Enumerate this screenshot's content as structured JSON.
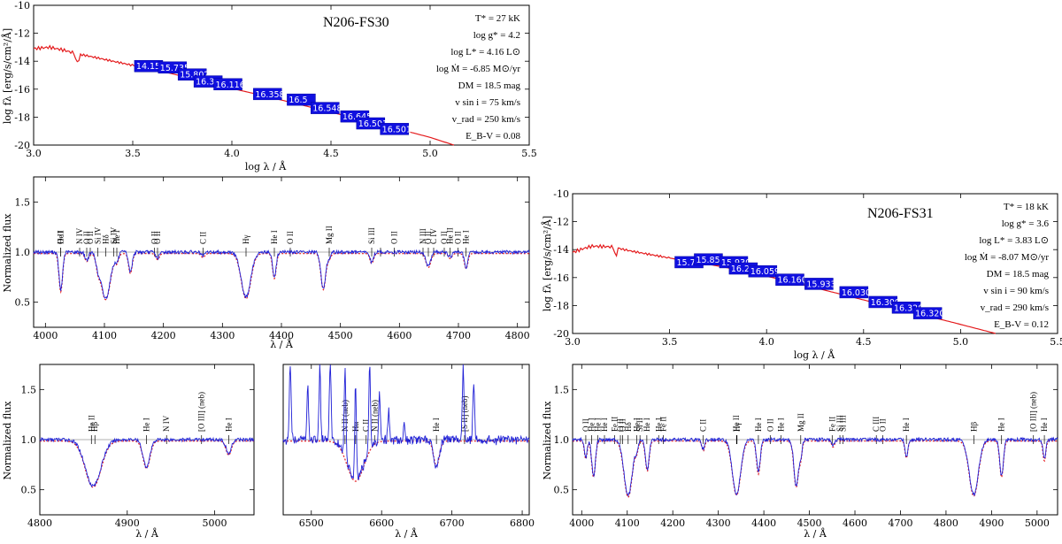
{
  "chart_data": [
    {
      "type": "line",
      "id": "sed-fs30",
      "title": "N206-FS30",
      "xlabel": "log λ / Å",
      "ylabel": "log fλ [erg/s/cm²/Å]",
      "xlim": [
        3.0,
        5.5
      ],
      "ylim": [
        -20,
        -10
      ],
      "xticks": [
        "3.0",
        "3.5",
        "4.0",
        "4.5",
        "5.0",
        "5.5"
      ],
      "yticks": [
        "-10",
        "-12",
        "-14",
        "-16",
        "-18",
        "-20"
      ],
      "params": [
        "T* = 27 kK",
        "log g* = 4.2",
        "log L* = 4.16 L⊙",
        "log Ṁ = -6.85 M⊙/yr",
        "DM = 18.5 mag",
        "v sin i = 75 km/s",
        "v_rad = 250 km/s",
        "E_B-V = 0.08"
      ],
      "sed": {
        "x": [
          3.0,
          3.08,
          3.15,
          3.2,
          3.3,
          3.4,
          3.5,
          3.6,
          3.7,
          3.8,
          3.9,
          4.0,
          4.2,
          4.4,
          4.6,
          4.8,
          5.0,
          5.12
        ],
        "y": [
          -13.1,
          -13.0,
          -13.2,
          -13.4,
          -13.7,
          -14.0,
          -14.3,
          -14.6,
          -14.9,
          -15.25,
          -15.6,
          -15.95,
          -16.6,
          -17.3,
          -18.0,
          -18.7,
          -19.45,
          -20.0
        ]
      },
      "photometry": [
        {
          "x": 3.58,
          "y": -14.35,
          "label": "14.15"
        },
        {
          "x": 3.7,
          "y": -14.45,
          "label": "15.735"
        },
        {
          "x": 3.8,
          "y": -14.95,
          "label": "15.802"
        },
        {
          "x": 3.88,
          "y": -15.45,
          "label": "16.389"
        },
        {
          "x": 3.98,
          "y": -15.65,
          "label": "16.116"
        },
        {
          "x": 4.18,
          "y": -16.35,
          "label": "16.358"
        },
        {
          "x": 4.35,
          "y": -16.75,
          "label": "16.5"
        },
        {
          "x": 4.47,
          "y": -17.35,
          "label": "16.548"
        },
        {
          "x": 4.62,
          "y": -17.95,
          "label": "16.645"
        },
        {
          "x": 4.7,
          "y": -18.45,
          "label": "16.501"
        },
        {
          "x": 4.82,
          "y": -18.85,
          "label": "16.501"
        }
      ]
    },
    {
      "type": "line",
      "id": "sed-fs31",
      "title": "N206-FS31",
      "xlabel": "log λ / Å",
      "ylabel": "log fλ [erg/s/cm²/Å]",
      "xlim": [
        3.0,
        5.5
      ],
      "ylim": [
        -20,
        -10
      ],
      "xticks": [
        "3.0",
        "3.5",
        "4.0",
        "4.5",
        "5.0",
        "5.5"
      ],
      "yticks": [
        "-10",
        "-12",
        "-14",
        "-16",
        "-18",
        "-20"
      ],
      "params": [
        "T* = 18 kK",
        "log g* = 3.6",
        "log L* = 3.83 L⊙",
        "log Ṁ = -8.07 M⊙/yr",
        "DM = 18.5 mag",
        "v sin i = 90 km/s",
        "v_rad = 290 km/s",
        "E_B-V = 0.12"
      ],
      "sed": {
        "x": [
          3.0,
          3.05,
          3.1,
          3.2,
          3.3,
          3.4,
          3.5,
          3.6,
          3.7,
          3.8,
          3.9,
          4.0,
          4.2,
          4.4,
          4.6,
          4.8,
          5.0,
          5.18
        ],
        "y": [
          -14.2,
          -13.95,
          -13.75,
          -13.8,
          -14.1,
          -14.35,
          -14.6,
          -14.85,
          -15.05,
          -15.3,
          -15.6,
          -15.9,
          -16.55,
          -17.25,
          -17.95,
          -18.65,
          -19.35,
          -20.0
        ]
      },
      "photometry": [
        {
          "x": 3.6,
          "y": -14.9,
          "label": "15.7"
        },
        {
          "x": 3.7,
          "y": -14.7,
          "label": "15.857"
        },
        {
          "x": 3.83,
          "y": -14.9,
          "label": "15.930"
        },
        {
          "x": 3.88,
          "y": -15.35,
          "label": "16.277"
        },
        {
          "x": 3.98,
          "y": -15.55,
          "label": "16.059"
        },
        {
          "x": 4.12,
          "y": -16.15,
          "label": "16.160"
        },
        {
          "x": 4.27,
          "y": -16.45,
          "label": "15.933"
        },
        {
          "x": 4.45,
          "y": -17.05,
          "label": "16.030"
        },
        {
          "x": 4.6,
          "y": -17.75,
          "label": "16.300"
        },
        {
          "x": 4.72,
          "y": -18.15,
          "label": "16.320"
        },
        {
          "x": 4.83,
          "y": -18.55,
          "label": "16.320"
        }
      ]
    },
    {
      "type": "line",
      "id": "spec-fs30-blue",
      "xlabel": "λ / Å",
      "ylabel": "Normalized flux",
      "xlim": [
        3980,
        4820
      ],
      "ylim": [
        0.25,
        1.75
      ],
      "xticks": [
        "4000",
        "4100",
        "4200",
        "4300",
        "4400",
        "4500",
        "4600",
        "4700",
        "4800"
      ],
      "yticks": [
        "0.5",
        "1.0",
        "1.5"
      ],
      "features": [
        {
          "x": 4026,
          "w": 3,
          "d": 0.38
        },
        {
          "x": 4070,
          "w": 3,
          "d": 0.08
        },
        {
          "x": 4089,
          "w": 3,
          "d": 0.1
        },
        {
          "x": 4102,
          "w": 8,
          "d": 0.46
        },
        {
          "x": 4121,
          "w": 3,
          "d": 0.08
        },
        {
          "x": 4144,
          "w": 3,
          "d": 0.2
        },
        {
          "x": 4190,
          "w": 3,
          "d": 0.06
        },
        {
          "x": 4267,
          "w": 3,
          "d": 0.04
        },
        {
          "x": 4340,
          "w": 8,
          "d": 0.45
        },
        {
          "x": 4388,
          "w": 3,
          "d": 0.25
        },
        {
          "x": 4471,
          "w": 4,
          "d": 0.36
        },
        {
          "x": 4481,
          "w": 3,
          "d": 0.05
        },
        {
          "x": 4553,
          "w": 3,
          "d": 0.1
        },
        {
          "x": 4649,
          "w": 4,
          "d": 0.14
        },
        {
          "x": 4686,
          "w": 3,
          "d": 0.05
        },
        {
          "x": 4713,
          "w": 3,
          "d": 0.15
        }
      ],
      "lines": [
        {
          "x": 4026,
          "label": "O II"
        },
        {
          "x": 4026,
          "label": "He I"
        },
        {
          "x": 4058,
          "label": "N IV"
        },
        {
          "x": 4070,
          "label": "O II"
        },
        {
          "x": 4076,
          "label": "O II"
        },
        {
          "x": 4089,
          "label": "Si IV"
        },
        {
          "x": 4102,
          "label": "Hδ"
        },
        {
          "x": 4116,
          "label": "Si IV"
        },
        {
          "x": 4121,
          "label": "He I"
        },
        {
          "x": 4185,
          "label": "O II"
        },
        {
          "x": 4190,
          "label": "O II"
        },
        {
          "x": 4267,
          "label": "C II"
        },
        {
          "x": 4340,
          "label": "Hγ"
        },
        {
          "x": 4388,
          "label": "He I"
        },
        {
          "x": 4415,
          "label": "O II"
        },
        {
          "x": 4481,
          "label": "Mg II"
        },
        {
          "x": 4553,
          "label": "Si III"
        },
        {
          "x": 4568,
          "label": ""
        },
        {
          "x": 4591,
          "label": "O II"
        },
        {
          "x": 4640,
          "label": "N III"
        },
        {
          "x": 4649,
          "label": "O II"
        },
        {
          "x": 4658,
          "label": "C IV"
        },
        {
          "x": 4676,
          "label": "O II"
        },
        {
          "x": 4686,
          "label": "He II"
        },
        {
          "x": 4699,
          "label": "O II"
        },
        {
          "x": 4713,
          "label": "He I"
        }
      ]
    },
    {
      "type": "line",
      "id": "spec-fs30-hb",
      "xlabel": "λ / Å",
      "ylabel": "Normalized flux",
      "xlim": [
        4800,
        5045
      ],
      "ylim": [
        0.25,
        1.75
      ],
      "xticks": [
        "4800",
        "4900",
        "5000"
      ],
      "yticks": [
        "0.5",
        "1.0",
        "1.5"
      ],
      "features": [
        {
          "x": 4861,
          "w": 9,
          "d": 0.46
        },
        {
          "x": 4922,
          "w": 4,
          "d": 0.27
        },
        {
          "x": 5016,
          "w": 3,
          "d": 0.14
        }
      ],
      "lines": [
        {
          "x": 4859,
          "label": "He II"
        },
        {
          "x": 4863,
          "label": "Hβ"
        },
        {
          "x": 4922,
          "label": "He I"
        },
        {
          "x": 4945,
          "label": "N IV"
        },
        {
          "x": 4985,
          "label": "[O III] (neb)"
        },
        {
          "x": 5016,
          "label": "He I"
        }
      ]
    },
    {
      "type": "line",
      "id": "spec-fs30-ha",
      "xlabel": "λ / Å",
      "ylabel": "Normalized flux",
      "xlim": [
        6460,
        6810
      ],
      "ylim": [
        0.25,
        1.75
      ],
      "xticks": [
        "6500",
        "6600",
        "6700",
        "6800"
      ],
      "yticks": [],
      "features": [
        {
          "x": 6563,
          "w": 12,
          "d": 0.4
        },
        {
          "x": 6678,
          "w": 4,
          "d": 0.25
        }
      ],
      "emission": [
        {
          "x": 6470,
          "h": 0.75
        },
        {
          "x": 6495,
          "h": 0.55
        },
        {
          "x": 6512,
          "h": 0.7
        },
        {
          "x": 6527,
          "h": 0.8
        },
        {
          "x": 6548,
          "h": 0.85
        },
        {
          "x": 6563,
          "h": 0.9
        },
        {
          "x": 6583,
          "h": 0.85
        },
        {
          "x": 6597,
          "h": 0.5
        },
        {
          "x": 6610,
          "h": 0.3
        },
        {
          "x": 6632,
          "h": 0.2
        },
        {
          "x": 6716,
          "h": 0.7
        },
        {
          "x": 6731,
          "h": 0.6
        }
      ],
      "lines": [
        {
          "x": 6548,
          "label": "N II (neb)"
        },
        {
          "x": 6563,
          "label": "Hα"
        },
        {
          "x": 6578,
          "label": "C II"
        },
        {
          "x": 6590,
          "label": "N II (neb)"
        },
        {
          "x": 6678,
          "label": "He I"
        },
        {
          "x": 6718,
          "label": "[S II] (neb)"
        }
      ]
    },
    {
      "type": "line",
      "id": "spec-fs31",
      "xlabel": "λ / Å",
      "ylabel": "Normalized flux",
      "xlim": [
        3980,
        5045
      ],
      "ylim": [
        0.25,
        1.75
      ],
      "xticks": [
        "4000",
        "4100",
        "4200",
        "4300",
        "4400",
        "4500",
        "4600",
        "4700",
        "4800",
        "4900",
        "5000"
      ],
      "yticks": [
        "0.5",
        "1.0",
        "1.5"
      ],
      "features": [
        {
          "x": 4009,
          "w": 3,
          "d": 0.18
        },
        {
          "x": 4026,
          "w": 4,
          "d": 0.36
        },
        {
          "x": 4102,
          "w": 9,
          "d": 0.56
        },
        {
          "x": 4121,
          "w": 3,
          "d": 0.08
        },
        {
          "x": 4144,
          "w": 4,
          "d": 0.3
        },
        {
          "x": 4267,
          "w": 3,
          "d": 0.1
        },
        {
          "x": 4340,
          "w": 9,
          "d": 0.54
        },
        {
          "x": 4388,
          "w": 4,
          "d": 0.33
        },
        {
          "x": 4471,
          "w": 5,
          "d": 0.46
        },
        {
          "x": 4481,
          "w": 3,
          "d": 0.15
        },
        {
          "x": 4552,
          "w": 3,
          "d": 0.06
        },
        {
          "x": 4713,
          "w": 3,
          "d": 0.17
        },
        {
          "x": 4861,
          "w": 10,
          "d": 0.55
        },
        {
          "x": 4922,
          "w": 4,
          "d": 0.36
        },
        {
          "x": 5016,
          "w": 3,
          "d": 0.2
        }
      ],
      "lines": [
        {
          "x": 4009,
          "label": "O II"
        },
        {
          "x": 4022,
          "label": "He I"
        },
        {
          "x": 4035,
          "label": "He I"
        },
        {
          "x": 4050,
          "label": "He I"
        },
        {
          "x": 4072,
          "label": "Fe II"
        },
        {
          "x": 4085,
          "label": "O II"
        },
        {
          "x": 4090,
          "label": "O II"
        },
        {
          "x": 4102,
          "label": "Hδ"
        },
        {
          "x": 4121,
          "label": "He I"
        },
        {
          "x": 4128,
          "label": "Si II"
        },
        {
          "x": 4143,
          "label": "He I"
        },
        {
          "x": 4169,
          "label": "He I"
        },
        {
          "x": 4179,
          "label": "Fe II"
        },
        {
          "x": 4267,
          "label": "C II"
        },
        {
          "x": 4340,
          "label": "He II"
        },
        {
          "x": 4341,
          "label": "Hγ"
        },
        {
          "x": 4388,
          "label": "He I"
        },
        {
          "x": 4414,
          "label": "O II"
        },
        {
          "x": 4438,
          "label": "He I"
        },
        {
          "x": 4481,
          "label": "Mg II"
        },
        {
          "x": 4550,
          "label": "Fe II"
        },
        {
          "x": 4567,
          "label": "Si III"
        },
        {
          "x": 4574,
          "label": "Si III"
        },
        {
          "x": 4647,
          "label": "C III"
        },
        {
          "x": 4661,
          "label": "O II"
        },
        {
          "x": 4713,
          "label": "He I"
        },
        {
          "x": 4861,
          "label": "Hβ"
        },
        {
          "x": 4922,
          "label": "He I"
        },
        {
          "x": 4992,
          "label": "[O III] (neb)"
        },
        {
          "x": 5016,
          "label": "He I"
        }
      ]
    }
  ]
}
